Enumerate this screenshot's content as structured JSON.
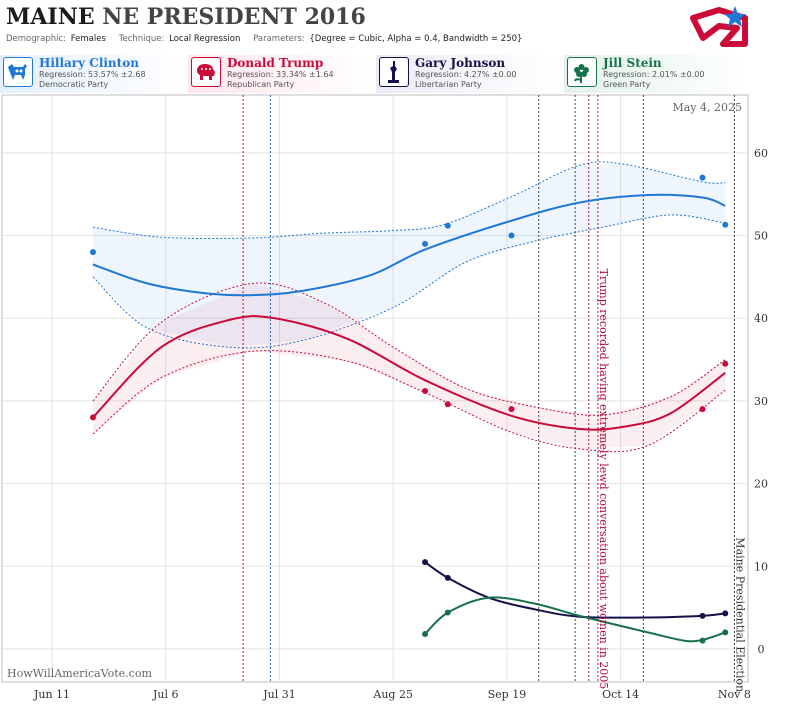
{
  "header": {
    "title_state": "MAINE",
    "title_rest": "NE PRESIDENT 2016",
    "demographic_label": "Demographic:",
    "demographic_value": "Females",
    "technique_label": "Technique:",
    "technique_value": "Local Regression",
    "parameters_label": "Parameters:",
    "parameters_value": "{Degree = Cubic, Alpha = 0.4, Bandwidth = 250}"
  },
  "candidates": [
    {
      "name": "Hillary Clinton",
      "regression": "Regression: 53.57% ±2.68",
      "party": "Democratic Party",
      "color": "#1f78d6",
      "icon": "donkey-icon"
    },
    {
      "name": "Donald Trump",
      "regression": "Regression: 33.34% ±1.64",
      "party": "Republican Party",
      "color": "#cc0a3a",
      "icon": "elephant-icon"
    },
    {
      "name": "Gary Johnson",
      "regression": "Regression: 4.27% ±0.00",
      "party": "Libertarian Party",
      "color": "#14124a",
      "icon": "statue-of-liberty-icon"
    },
    {
      "name": "Jill Stein",
      "regression": "Regression: 2.01% ±0.00",
      "party": "Green Party",
      "color": "#16724a",
      "icon": "flower-icon"
    }
  ],
  "chart_data": {
    "type": "line",
    "x_tick_labels": [
      "Jun 11",
      "Jul 6",
      "Jul 31",
      "Aug 25",
      "Sep 19",
      "Oct 14",
      "Nov 8"
    ],
    "x_ticks": [
      "2016-06-11",
      "2016-07-06",
      "2016-07-31",
      "2016-08-25",
      "2016-09-19",
      "2016-10-14",
      "2016-11-08"
    ],
    "xlim": [
      "2016-05-31",
      "2016-11-11"
    ],
    "ylim": [
      -4,
      67
    ],
    "y_ticks": [
      0,
      10,
      20,
      30,
      40,
      50,
      60
    ],
    "grid": true,
    "date_label": "May 4, 2025",
    "watermark": "HowWillAmericaVote.com",
    "series": [
      {
        "name": "Hillary Clinton",
        "color": "#1f78d6",
        "points": [
          [
            "2016-06-20",
            48
          ],
          [
            "2016-09-01",
            49
          ],
          [
            "2016-09-06",
            51.2
          ],
          [
            "2016-09-20",
            50
          ],
          [
            "2016-11-01",
            57
          ],
          [
            "2016-11-06",
            51.3
          ]
        ],
        "line": [
          [
            "2016-06-20",
            46.5
          ],
          [
            "2016-07-02",
            44.2
          ],
          [
            "2016-07-15",
            43
          ],
          [
            "2016-07-25",
            42.8
          ],
          [
            "2016-08-05",
            43.3
          ],
          [
            "2016-08-20",
            45.2
          ],
          [
            "2016-09-01",
            48.3
          ],
          [
            "2016-09-20",
            51.8
          ],
          [
            "2016-10-05",
            54
          ],
          [
            "2016-10-20",
            54.9
          ],
          [
            "2016-11-01",
            54.6
          ],
          [
            "2016-11-06",
            53.6
          ]
        ],
        "upper": [
          [
            "2016-06-20",
            51
          ],
          [
            "2016-07-05",
            49.8
          ],
          [
            "2016-07-25",
            49.7
          ],
          [
            "2016-08-10",
            50.3
          ],
          [
            "2016-08-25",
            50.6
          ],
          [
            "2016-09-05",
            51.3
          ],
          [
            "2016-09-20",
            54.7
          ],
          [
            "2016-10-05",
            58.5
          ],
          [
            "2016-10-15",
            58.6
          ],
          [
            "2016-11-01",
            56.5
          ],
          [
            "2016-11-06",
            56.4
          ]
        ],
        "lower": [
          [
            "2016-06-20",
            45
          ],
          [
            "2016-07-02",
            38.8
          ],
          [
            "2016-07-20",
            36.5
          ],
          [
            "2016-08-05",
            37.3
          ],
          [
            "2016-08-25",
            41.3
          ],
          [
            "2016-09-10",
            46.8
          ],
          [
            "2016-09-25",
            49.3
          ],
          [
            "2016-10-10",
            51
          ],
          [
            "2016-10-25",
            52.5
          ],
          [
            "2016-11-06",
            51.5
          ]
        ]
      },
      {
        "name": "Donald Trump",
        "color": "#cc0a3a",
        "points": [
          [
            "2016-06-20",
            28
          ],
          [
            "2016-09-01",
            31.2
          ],
          [
            "2016-09-06",
            29.6
          ],
          [
            "2016-09-20",
            29
          ],
          [
            "2016-11-01",
            29
          ],
          [
            "2016-11-06",
            34.5
          ]
        ],
        "line": [
          [
            "2016-06-20",
            28
          ],
          [
            "2016-07-05",
            36.5
          ],
          [
            "2016-07-20",
            39.8
          ],
          [
            "2016-07-30",
            40
          ],
          [
            "2016-08-15",
            37.5
          ],
          [
            "2016-09-01",
            32.5
          ],
          [
            "2016-09-20",
            28.2
          ],
          [
            "2016-10-05",
            26.6
          ],
          [
            "2016-10-15",
            26.9
          ],
          [
            "2016-10-25",
            28.5
          ],
          [
            "2016-11-06",
            33.4
          ]
        ],
        "upper": [
          [
            "2016-06-20",
            30
          ],
          [
            "2016-07-05",
            39.5
          ],
          [
            "2016-07-25",
            44.2
          ],
          [
            "2016-08-10",
            41.8
          ],
          [
            "2016-08-25",
            36.5
          ],
          [
            "2016-09-10",
            31.5
          ],
          [
            "2016-09-25",
            29.3
          ],
          [
            "2016-10-10",
            28.3
          ],
          [
            "2016-10-25",
            30.5
          ],
          [
            "2016-11-06",
            35
          ]
        ],
        "lower": [
          [
            "2016-06-20",
            26
          ],
          [
            "2016-07-05",
            32.8
          ],
          [
            "2016-07-25",
            36
          ],
          [
            "2016-08-15",
            34.8
          ],
          [
            "2016-09-01",
            31
          ],
          [
            "2016-09-20",
            26.2
          ],
          [
            "2016-10-05",
            24.2
          ],
          [
            "2016-10-20",
            24.6
          ],
          [
            "2016-11-06",
            31.3
          ]
        ]
      },
      {
        "name": "Gary Johnson",
        "color": "#14124a",
        "points": [
          [
            "2016-09-01",
            10.5
          ],
          [
            "2016-09-06",
            8.6
          ],
          [
            "2016-11-01",
            4
          ],
          [
            "2016-11-06",
            4.3
          ]
        ],
        "line": [
          [
            "2016-09-01",
            10.5
          ],
          [
            "2016-09-06",
            8.6
          ],
          [
            "2016-09-15",
            6.2
          ],
          [
            "2016-09-25",
            4.8
          ],
          [
            "2016-10-05",
            3.9
          ],
          [
            "2016-10-20",
            3.8
          ],
          [
            "2016-11-01",
            4
          ],
          [
            "2016-11-06",
            4.3
          ]
        ]
      },
      {
        "name": "Jill Stein",
        "color": "#16724a",
        "points": [
          [
            "2016-09-01",
            1.8
          ],
          [
            "2016-09-06",
            4.4
          ],
          [
            "2016-11-01",
            1
          ],
          [
            "2016-11-06",
            2
          ]
        ],
        "line": [
          [
            "2016-09-01",
            1.8
          ],
          [
            "2016-09-06",
            4.4
          ],
          [
            "2016-09-15",
            6.2
          ],
          [
            "2016-09-25",
            5.5
          ],
          [
            "2016-10-05",
            4
          ],
          [
            "2016-10-20",
            2
          ],
          [
            "2016-10-28",
            1
          ],
          [
            "2016-11-01",
            1.1
          ],
          [
            "2016-11-06",
            2
          ]
        ]
      }
    ],
    "vlines": [
      {
        "date": "2016-07-23",
        "color": "#a0154a",
        "style": "dotted"
      },
      {
        "date": "2016-07-29",
        "color": "#2a6bbf",
        "style": "dotted"
      },
      {
        "date": "2016-09-26",
        "color": "#444",
        "style": "dotted"
      },
      {
        "date": "2016-10-04",
        "color": "#444",
        "style": "dotted"
      },
      {
        "date": "2016-10-07",
        "color": "#a0154a",
        "style": "dotted"
      },
      {
        "date": "2016-10-09",
        "color": "#a0154a",
        "style": "dotted"
      },
      {
        "date": "2016-10-19",
        "color": "#444",
        "style": "dotted"
      },
      {
        "date": "2016-11-08",
        "color": "#444",
        "style": "dotted"
      }
    ],
    "annotations": [
      {
        "text": "Trump recorded having extremely lewd conversation about women in 2005",
        "date": "2016-10-09",
        "color": "#b0103a"
      },
      {
        "text": "Maine Presidential Election",
        "date": "2016-11-08",
        "color": "#333"
      }
    ]
  }
}
